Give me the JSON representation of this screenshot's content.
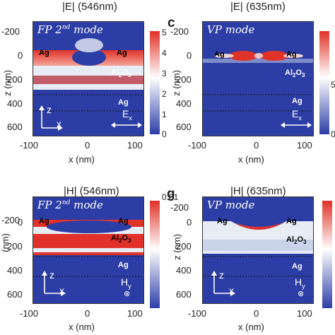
{
  "panels": [
    {
      "id": "top-left",
      "letter": "",
      "title": "|E| (546nm)",
      "mode_main": "FP 2",
      "mode_sup": "nd",
      "mode_tail": " mode",
      "cbar_ticks": [
        "5",
        "4",
        "3",
        "2",
        "1",
        "0"
      ],
      "field_main": "E",
      "field_sub": "x",
      "field_symbol": ""
    },
    {
      "id": "top-right",
      "letter": "c",
      "title": "|E| (635nm)",
      "mode_main": "VP mode",
      "mode_sup": "",
      "mode_tail": "",
      "cbar_ticks": [
        "",
        "5",
        "0"
      ],
      "field_main": "E",
      "field_sub": "x",
      "field_symbol": ""
    },
    {
      "id": "bottom-left",
      "letter": "",
      "title": "|H| (546nm)",
      "mode_main": "FP 2",
      "mode_sup": "nd",
      "mode_tail": " mode",
      "cbar_ticks": [
        "0.01"
      ],
      "field_main": "H",
      "field_sub": "y",
      "field_symbol": "⊗"
    },
    {
      "id": "bottom-right",
      "letter": "g",
      "title": "|H| (635nm)",
      "mode_main": "VP mode",
      "mode_sup": "",
      "mode_tail": "",
      "cbar_ticks": [],
      "field_main": "H",
      "field_sub": "y",
      "field_symbol": "⊗"
    }
  ],
  "materials": {
    "ag": "Ag",
    "al2o3_main": "Al",
    "al2o3_sub1": "2",
    "al2o3_o": "O",
    "al2o3_sub2": "3"
  },
  "axes": {
    "x_ticks": [
      "-100",
      "0",
      "100"
    ],
    "y_ticks": [
      "-200",
      "0",
      "200",
      "400",
      "600"
    ],
    "xlabel": "x (nm)",
    "ylabel_top": "z (nm)",
    "ylabel_bottom_left": "(nm)",
    "ylabel_bottom_right": "z (nm)",
    "coord_z": "z",
    "coord_x": "x"
  },
  "colors": {
    "background": "#2c3ea6",
    "hot": "#e03228",
    "pale": "#dfe6f2"
  }
}
